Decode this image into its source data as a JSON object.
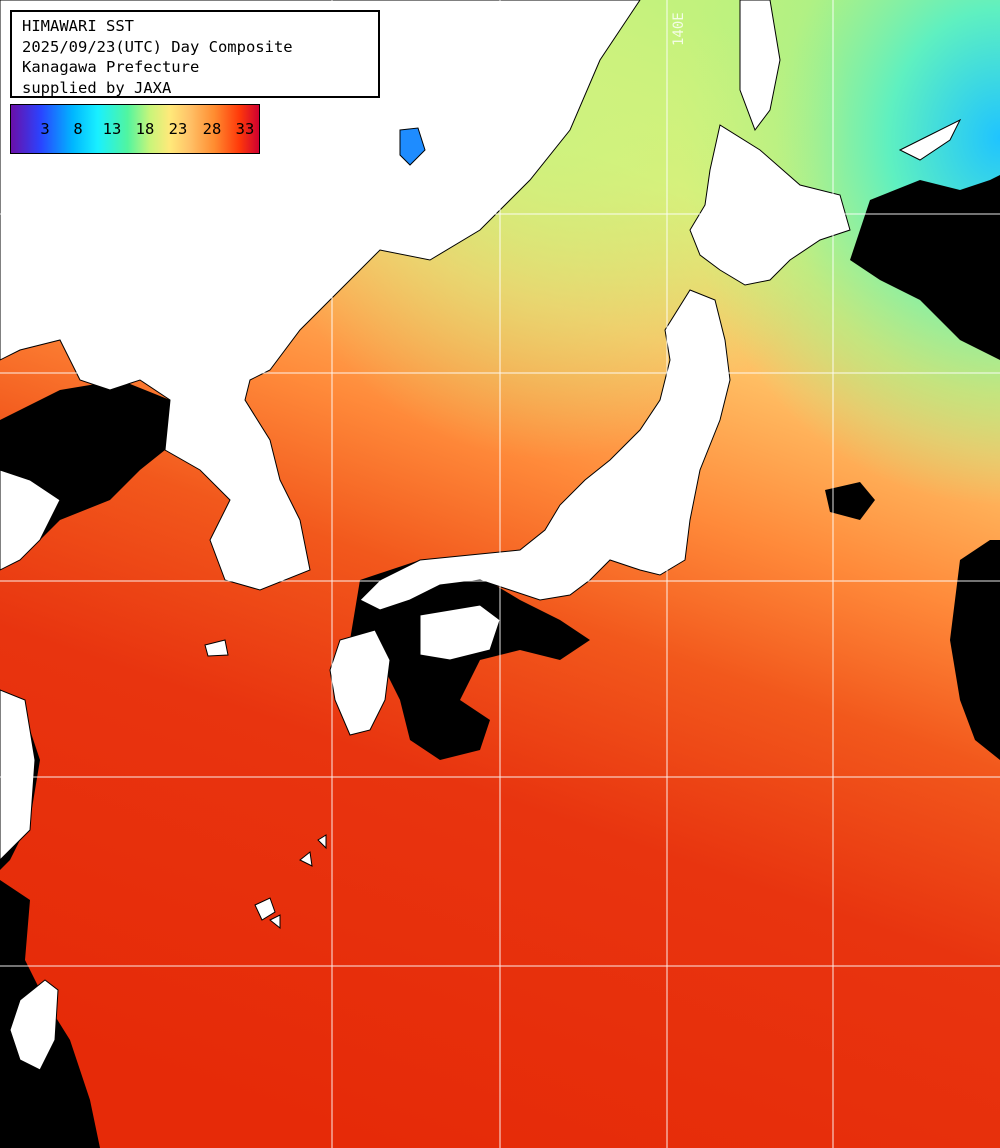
{
  "header": {
    "line1": "HIMAWARI SST",
    "line2": "2025/09/23(UTC) Day Composite",
    "line3": "Kanagawa Prefecture",
    "line4": "supplied by JAXA"
  },
  "legend": {
    "ticks": [
      "3",
      "8",
      "13",
      "18",
      "23",
      "28",
      "33"
    ]
  },
  "map": {
    "meridian_label": "140E",
    "colors": {
      "land": "#ffffff",
      "cloud_mask": "#000000",
      "grid": "#ffffff",
      "warm_sea": "#e8330f",
      "cool_sea": "#9af27a"
    }
  }
}
